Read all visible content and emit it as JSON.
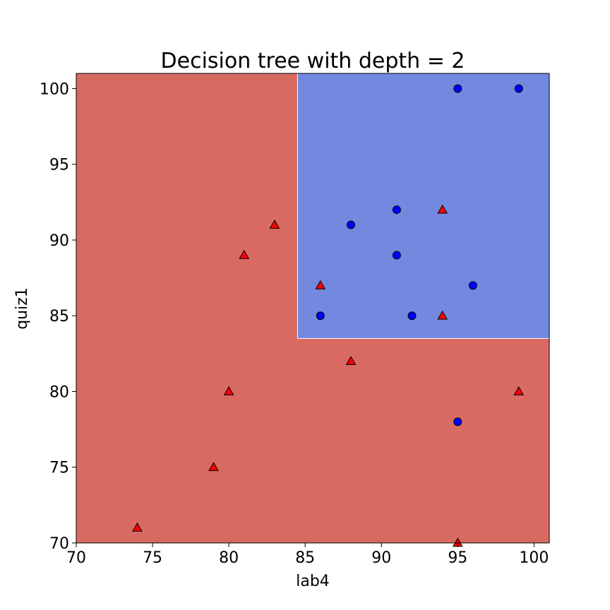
{
  "chart_data": {
    "type": "scatter",
    "title": "Decision tree with depth = 2",
    "xlabel": "lab4",
    "ylabel": "quiz1",
    "xlim": [
      70,
      101
    ],
    "ylim": [
      70,
      101
    ],
    "xticks": [
      70,
      75,
      80,
      85,
      90,
      95,
      100
    ],
    "yticks": [
      70,
      75,
      80,
      85,
      90,
      95,
      100
    ],
    "xtick_labels": [
      "70",
      "75",
      "80",
      "85",
      "90",
      "95",
      "100"
    ],
    "ytick_labels": [
      "70",
      "75",
      "80",
      "85",
      "90",
      "95",
      "100"
    ],
    "grid": false,
    "background_color": "#d96a62",
    "decision_regions": [
      {
        "class": "circle",
        "color": "#7389e0",
        "x_range": [
          84.5,
          101
        ],
        "y_range": [
          83.5,
          101
        ]
      }
    ],
    "series": [
      {
        "marker": "triangle",
        "color": "#ff0000",
        "points": [
          {
            "x": 74,
            "y": 71
          },
          {
            "x": 79,
            "y": 75
          },
          {
            "x": 80,
            "y": 80
          },
          {
            "x": 81,
            "y": 89
          },
          {
            "x": 83,
            "y": 91
          },
          {
            "x": 86,
            "y": 87
          },
          {
            "x": 88,
            "y": 82
          },
          {
            "x": 94,
            "y": 92
          },
          {
            "x": 94,
            "y": 85
          },
          {
            "x": 95,
            "y": 70
          },
          {
            "x": 99,
            "y": 80
          }
        ]
      },
      {
        "marker": "circle",
        "color": "#0000ff",
        "points": [
          {
            "x": 86,
            "y": 85
          },
          {
            "x": 88,
            "y": 91
          },
          {
            "x": 91,
            "y": 92
          },
          {
            "x": 91,
            "y": 89
          },
          {
            "x": 92,
            "y": 85
          },
          {
            "x": 95,
            "y": 100
          },
          {
            "x": 99,
            "y": 100
          },
          {
            "x": 96,
            "y": 87
          },
          {
            "x": 95,
            "y": 78
          }
        ]
      }
    ]
  }
}
